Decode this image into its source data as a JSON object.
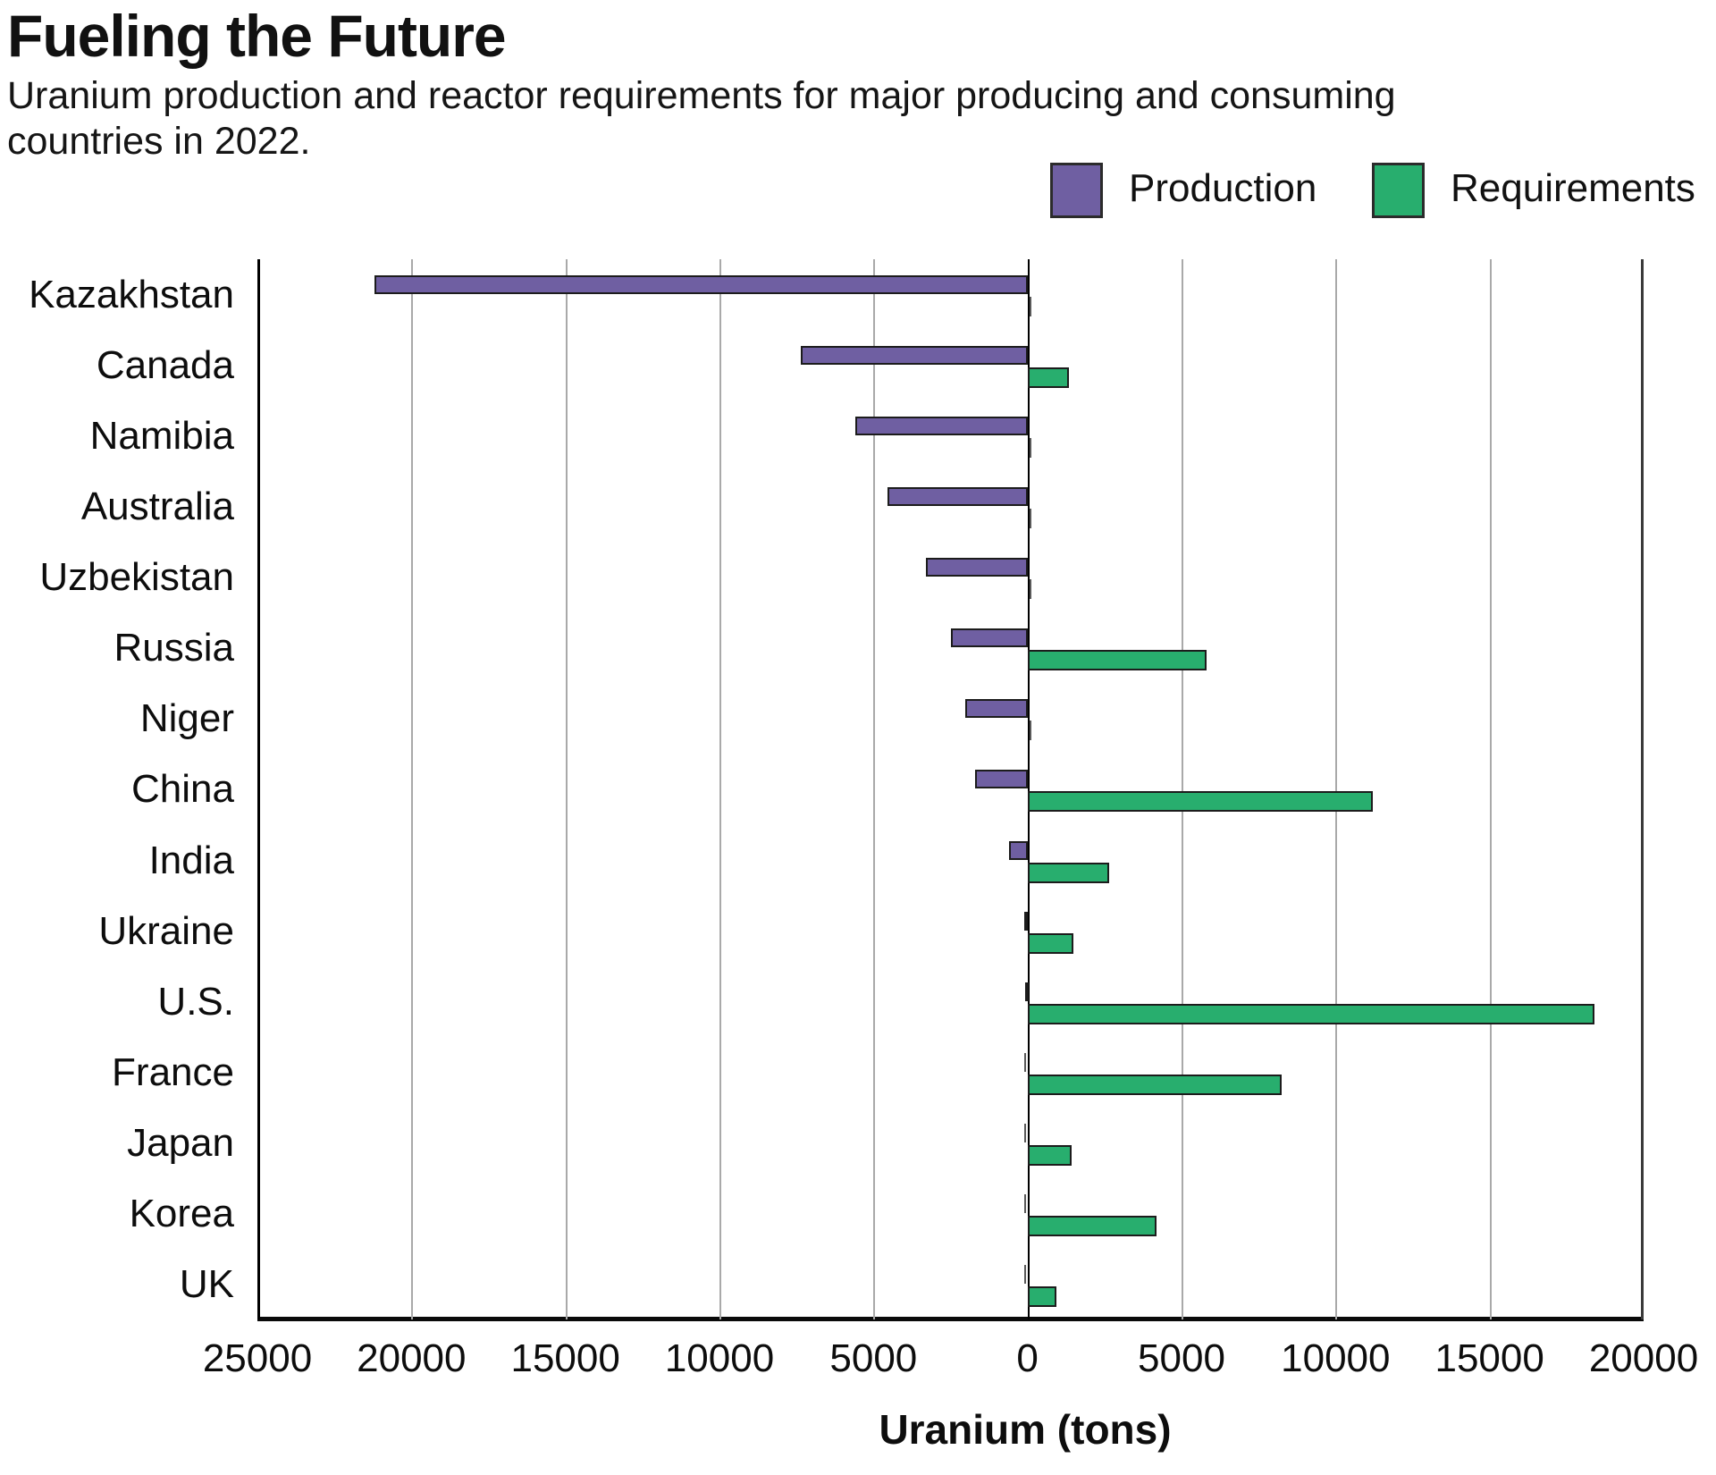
{
  "title": "Fueling the Future",
  "subtitle": "Uranium production and reactor requirements for major producing and consuming countries in 2022.",
  "legend": {
    "production_label": "Production",
    "requirements_label": "Requirements"
  },
  "colors": {
    "production": "#6F5FA2",
    "requirements": "#28AE6E",
    "bar_border": "#1c1c1c",
    "gridline": "#a9a9a9",
    "axis": "#000000"
  },
  "chart_data": {
    "type": "bar",
    "orientation": "horizontal-diverging",
    "title": "Fueling the Future",
    "subtitle": "Uranium production and reactor requirements for major producing and consuming countries in 2022.",
    "xlabel": "Uranium (tons)",
    "grid": true,
    "legend_position": "top-right",
    "categories": [
      "Kazakhstan",
      "Canada",
      "Namibia",
      "Australia",
      "Uzbekistan",
      "Russia",
      "Niger",
      "China",
      "India",
      "Ukraine",
      "U.S.",
      "France",
      "Japan",
      "Korea",
      "UK"
    ],
    "series": [
      {
        "name": "Production",
        "side": "left",
        "values": [
          21200,
          7350,
          5600,
          4550,
          3300,
          2500,
          2020,
          1700,
          600,
          100,
          75,
          0,
          0,
          0,
          0
        ]
      },
      {
        "name": "Requirements",
        "side": "right",
        "values": [
          0,
          1350,
          0,
          0,
          0,
          5800,
          0,
          11200,
          2650,
          1490,
          18400,
          8250,
          1430,
          4200,
          950
        ]
      }
    ],
    "x_tick_values_signed": [
      -25000,
      -20000,
      -15000,
      -10000,
      -5000,
      0,
      5000,
      10000,
      15000,
      20000
    ],
    "x_tick_labels": [
      "25000",
      "20000",
      "15000",
      "10000",
      "5000",
      "0",
      "5000",
      "10000",
      "15000",
      "20000"
    ],
    "x_domain": {
      "left_max_production": 25000,
      "right_max_requirements": 21500
    }
  }
}
